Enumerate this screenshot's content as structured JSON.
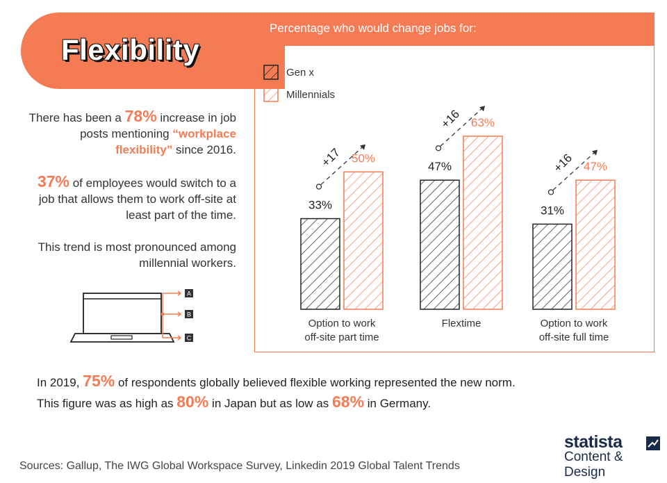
{
  "title": "Flexibility",
  "chart_header": "Percentage who would change jobs for:",
  "stats": {
    "s1_pre": "There has been a ",
    "s1_num": "78%",
    "s1_mid": " increase in job posts mentioning ",
    "s1_quote": "“workplace flexibility”",
    "s1_post": " since 2016.",
    "s2_num": "37%",
    "s2_post": " of employees would switch to a job that allows them to work off-site at least part of the time.",
    "s3": "This trend is most pronounced among millennial workers."
  },
  "laptop_options": [
    "A",
    "B",
    "C"
  ],
  "bottom": {
    "l1_pre": "In 2019, ",
    "l1_num": "75%",
    "l1_post": " of respondents globally believed flexible working represented the new norm.",
    "l2_pre": "This figure was as high as ",
    "l2_num1": "80%",
    "l2_mid": " in Japan but as low as ",
    "l2_num2": "68%",
    "l2_post": " in Germany."
  },
  "sources": "Sources: Gallup, The IWG Global Workspace Survey, Linkedin 2019 Global Talent Trends",
  "brand": {
    "name": "statista",
    "sub": "Content & Design"
  },
  "colors": {
    "accent": "#f47b54",
    "dark": "#222222"
  },
  "chart_data": {
    "type": "bar",
    "title": "Percentage who would change jobs for:",
    "categories": [
      [
        "Option to work",
        "off-site part time"
      ],
      [
        "Flextime"
      ],
      [
        "Option to work",
        "off-site full time"
      ]
    ],
    "series": [
      {
        "name": "Gen x",
        "values": [
          33,
          47,
          31
        ],
        "labels": [
          "33%",
          "47%",
          "31%"
        ],
        "color": "#222222"
      },
      {
        "name": "Millennials",
        "values": [
          50,
          63,
          47
        ],
        "labels": [
          "50%",
          "63%",
          "47%"
        ],
        "color": "#f47b54"
      }
    ],
    "differences": [
      "+17",
      "+16",
      "+16"
    ],
    "legend": "top-left",
    "ylim": [
      0,
      75
    ],
    "grid": false
  }
}
